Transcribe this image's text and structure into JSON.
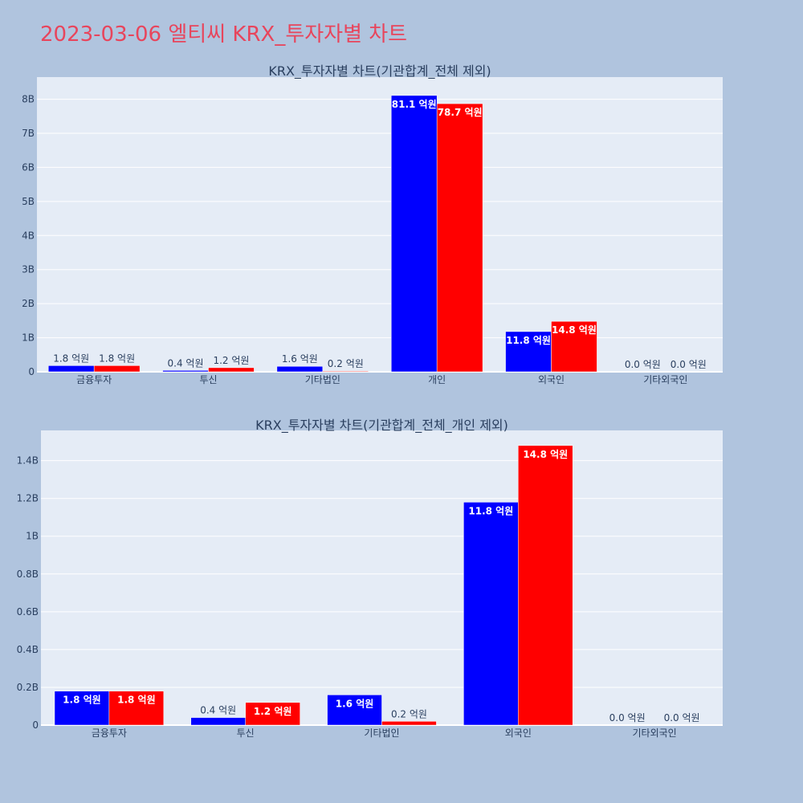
{
  "page": {
    "title": "2023-03-06 엘티씨 KRX_투자자별 차트",
    "background": "#b0c4de",
    "title_color": "#e8455c"
  },
  "chart_data": [
    {
      "type": "bar",
      "title": "KRX_투자자별 차트(기관합계_전체 제외)",
      "categories": [
        "금융투자",
        "투신",
        "기타법인",
        "개인",
        "외국인",
        "기타외국인"
      ],
      "series": [
        {
          "color": "#0000ff",
          "values": [
            180000000,
            40000000,
            160000000,
            8110000000,
            1180000000,
            0
          ],
          "labels": [
            "1.8 억원",
            "0.4 억원",
            "1.6 억원",
            "81.1 억원",
            "11.8 억원",
            "0.0 억원"
          ]
        },
        {
          "color": "#ff0000",
          "values": [
            180000000,
            120000000,
            20000000,
            7870000000,
            1480000000,
            0
          ],
          "labels": [
            "1.8 억원",
            "1.2 억원",
            "0.2 억원",
            "78.7 억원",
            "14.8 억원",
            "0.0 억원"
          ]
        }
      ],
      "ylim": [
        0,
        8650000000
      ],
      "yticks": [
        0,
        1000000000,
        2000000000,
        3000000000,
        4000000000,
        5000000000,
        6000000000,
        7000000000,
        8000000000
      ],
      "ytick_labels": [
        "0",
        "1B",
        "2B",
        "3B",
        "4B",
        "5B",
        "6B",
        "7B",
        "8B"
      ],
      "grid": true,
      "plot_background": "#e5ecf6"
    },
    {
      "type": "bar",
      "title": "KRX_투자자별 차트(기관합계_전체_개인 제외)",
      "categories": [
        "금융투자",
        "투신",
        "기타법인",
        "외국인",
        "기타외국인"
      ],
      "series": [
        {
          "color": "#0000ff",
          "values": [
            180000000,
            40000000,
            160000000,
            1180000000,
            0
          ],
          "labels": [
            "1.8 억원",
            "0.4 억원",
            "1.6 억원",
            "11.8 억원",
            "0.0 억원"
          ]
        },
        {
          "color": "#ff0000",
          "values": [
            180000000,
            120000000,
            20000000,
            1480000000,
            0
          ],
          "labels": [
            "1.8 억원",
            "1.2 억원",
            "0.2 억원",
            "14.8 억원",
            "0.0 억원"
          ]
        }
      ],
      "ylim": [
        0,
        1560000000
      ],
      "yticks": [
        0,
        200000000,
        400000000,
        600000000,
        800000000,
        1000000000,
        1200000000,
        1400000000
      ],
      "ytick_labels": [
        "0",
        "0.2B",
        "0.4B",
        "0.6B",
        "0.8B",
        "1B",
        "1.2B",
        "1.4B"
      ],
      "grid": true,
      "plot_background": "#e5ecf6"
    }
  ]
}
